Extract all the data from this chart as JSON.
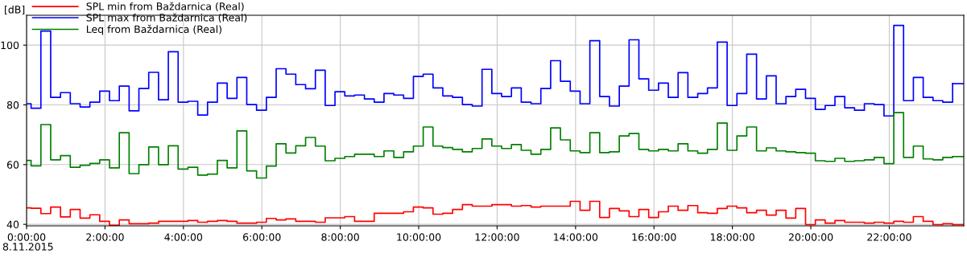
{
  "chart_data": {
    "type": "step",
    "ylabel": "[dB]",
    "x": [
      0,
      0.115,
      0.365,
      0.615,
      0.865,
      1.115,
      1.365,
      1.615,
      1.865,
      2.115,
      2.365,
      2.615,
      2.865,
      3.115,
      3.365,
      3.615,
      3.865,
      4.115,
      4.365,
      4.615,
      4.865,
      5.115,
      5.365,
      5.615,
      5.865,
      6.115,
      6.365,
      6.615,
      6.865,
      7.115,
      7.365,
      7.615,
      7.865,
      8.115,
      8.365,
      8.615,
      8.865,
      9.115,
      9.365,
      9.615,
      9.865,
      10.115,
      10.365,
      10.615,
      10.865,
      11.115,
      11.365,
      11.615,
      11.865,
      12.115,
      12.365,
      12.615,
      12.865,
      13.115,
      13.365,
      13.615,
      13.865,
      14.115,
      14.365,
      14.615,
      14.865,
      15.115,
      15.365,
      15.615,
      15.865,
      16.115,
      16.365,
      16.615,
      16.865,
      17.115,
      17.365,
      17.615,
      17.865,
      18.115,
      18.365,
      18.615,
      18.865,
      19.115,
      19.365,
      19.615,
      19.865,
      20.115,
      20.365,
      20.615,
      20.865,
      21.115,
      21.365,
      21.615,
      21.865,
      22.115,
      22.365,
      22.615,
      22.865,
      23.115,
      23.365,
      23.615
    ],
    "series": [
      {
        "name": "SPL min from Baždarnica (Real)",
        "color": "#ff0000",
        "values": [
          45.5,
          45.4,
          43.6,
          45.8,
          42.5,
          45.0,
          42.1,
          43.2,
          41.0,
          39.7,
          41.5,
          40.2,
          40.2,
          40.4,
          41.0,
          41.0,
          41.0,
          41.3,
          40.7,
          41.0,
          41.3,
          41.0,
          40.4,
          40.4,
          40.7,
          42.0,
          41.5,
          41.8,
          41.0,
          41.0,
          40.7,
          42.2,
          42.2,
          42.6,
          41.0,
          41.0,
          43.7,
          43.7,
          43.7,
          44.2,
          45.8,
          45.5,
          43.4,
          43.7,
          45.0,
          46.6,
          46.1,
          46.1,
          46.6,
          46.6,
          46.1,
          46.3,
          45.8,
          46.1,
          46.1,
          46.1,
          47.7,
          44.7,
          47.7,
          42.3,
          45.3,
          44.5,
          42.6,
          45.0,
          42.3,
          44.2,
          46.1,
          44.7,
          46.3,
          43.9,
          43.7,
          45.3,
          46.1,
          45.5,
          43.9,
          44.7,
          43.1,
          44.7,
          42.1,
          45.3,
          39.9,
          41.5,
          40.4,
          41.3,
          40.7,
          40.7,
          40.4,
          40.7,
          40.4,
          41.0,
          40.7,
          42.6,
          41.0,
          39.9,
          40.2,
          39.9
        ]
      },
      {
        "name": "SPL max from Baždarnica (Real)",
        "color": "#0000ff",
        "values": [
          80.4,
          78.9,
          104.7,
          82.5,
          84.1,
          80.4,
          79.3,
          80.9,
          84.6,
          81.4,
          86.3,
          78.0,
          85.5,
          90.9,
          81.7,
          97.8,
          80.9,
          81.2,
          76.6,
          80.9,
          87.3,
          82.2,
          89.2,
          80.1,
          78.2,
          82.5,
          92.1,
          90.3,
          86.8,
          85.4,
          91.6,
          79.8,
          84.4,
          83.0,
          83.3,
          82.0,
          80.9,
          83.8,
          83.3,
          82.2,
          89.5,
          90.3,
          85.7,
          83.0,
          82.5,
          80.1,
          79.6,
          91.9,
          83.8,
          82.8,
          85.7,
          80.9,
          80.4,
          85.5,
          94.8,
          87.9,
          84.6,
          80.4,
          101.5,
          82.8,
          79.6,
          86.3,
          101.8,
          88.7,
          84.9,
          87.3,
          82.5,
          90.8,
          82.5,
          83.8,
          85.7,
          101.0,
          79.8,
          83.8,
          97.0,
          82.0,
          89.7,
          80.4,
          82.8,
          85.2,
          82.2,
          78.5,
          79.8,
          82.8,
          79.0,
          78.2,
          80.4,
          80.1,
          76.3,
          106.6,
          81.4,
          89.2,
          82.5,
          81.4,
          80.9,
          87.1
        ]
      },
      {
        "name": "Leq from Baždarnica (Real)",
        "color": "#008000",
        "values": [
          61.4,
          59.6,
          73.4,
          61.6,
          63.0,
          59.1,
          59.8,
          60.4,
          61.6,
          58.9,
          70.7,
          57.0,
          60.0,
          65.9,
          60.0,
          66.3,
          58.5,
          59.1,
          56.5,
          56.8,
          61.4,
          58.9,
          71.3,
          57.9,
          55.5,
          59.5,
          67.0,
          63.9,
          66.3,
          69.1,
          66.2,
          61.3,
          62.1,
          62.7,
          63.5,
          63.5,
          62.7,
          64.6,
          62.4,
          64.3,
          66.2,
          72.6,
          66.2,
          65.7,
          65.1,
          64.3,
          65.4,
          68.6,
          66.2,
          65.4,
          66.7,
          64.8,
          63.5,
          65.1,
          72.3,
          68.3,
          64.6,
          64.0,
          70.7,
          64.0,
          64.3,
          69.6,
          70.4,
          65.1,
          64.6,
          65.1,
          64.6,
          67.0,
          64.6,
          63.8,
          65.1,
          73.9,
          64.8,
          69.6,
          72.6,
          64.6,
          65.6,
          64.6,
          64.3,
          64.0,
          63.8,
          61.3,
          61.1,
          62.1,
          61.1,
          61.3,
          61.6,
          62.4,
          60.3,
          77.4,
          62.4,
          66.2,
          61.9,
          61.6,
          62.4,
          62.7
        ]
      }
    ],
    "xlim": [
      0,
      23.9
    ],
    "xticks": [
      {
        "value": 0,
        "label": "0:00:00"
      },
      {
        "value": 2,
        "label": "2:00:00"
      },
      {
        "value": 4,
        "label": "4:00:00"
      },
      {
        "value": 6,
        "label": "6:00:00"
      },
      {
        "value": 8,
        "label": "8:00:00"
      },
      {
        "value": 10,
        "label": "10:00:00"
      },
      {
        "value": 12,
        "label": "12:00:00"
      },
      {
        "value": 14,
        "label": "14:00:00"
      },
      {
        "value": 16,
        "label": "16:00:00"
      },
      {
        "value": 18,
        "label": "18:00:00"
      },
      {
        "value": 20,
        "label": "20:00:00"
      },
      {
        "value": 22,
        "label": "22:00:00"
      }
    ],
    "ylim": [
      39.5,
      110
    ],
    "yticks": [
      40,
      60,
      80,
      100
    ],
    "grid": true,
    "legend": "top left",
    "annotations": [
      "8.11.2015"
    ]
  }
}
